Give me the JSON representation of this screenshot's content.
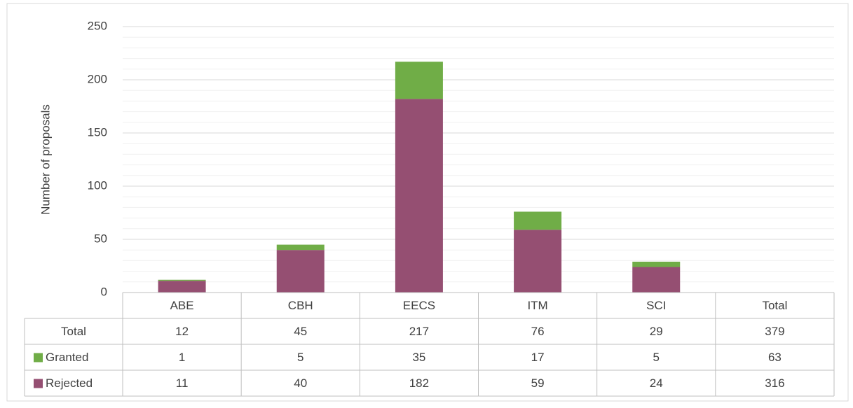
{
  "chart_data": {
    "type": "stacked_bar",
    "y_axis_label": "Number of proposals",
    "categories": [
      "ABE",
      "CBH",
      "EECS",
      "ITM",
      "SCI"
    ],
    "series": [
      {
        "name": "Rejected",
        "color": "#954f72",
        "values": [
          11,
          40,
          182,
          59,
          24
        ]
      },
      {
        "name": "Granted",
        "color": "#70ad47",
        "values": [
          1,
          5,
          35,
          17,
          5
        ]
      }
    ],
    "ylim": [
      0,
      250
    ],
    "yticks": [
      0,
      50,
      100,
      150,
      200,
      250
    ],
    "grid": true,
    "minor_grid_step": 10
  },
  "data_table": {
    "columns": [
      "ABE",
      "CBH",
      "EECS",
      "ITM",
      "SCI",
      "Total"
    ],
    "total_label": "Total",
    "total_row": [
      12,
      45,
      217,
      76,
      29,
      379
    ],
    "granted_row": [
      1,
      5,
      35,
      17,
      5,
      63
    ],
    "rejected_row": [
      11,
      40,
      182,
      59,
      24,
      316
    ]
  }
}
